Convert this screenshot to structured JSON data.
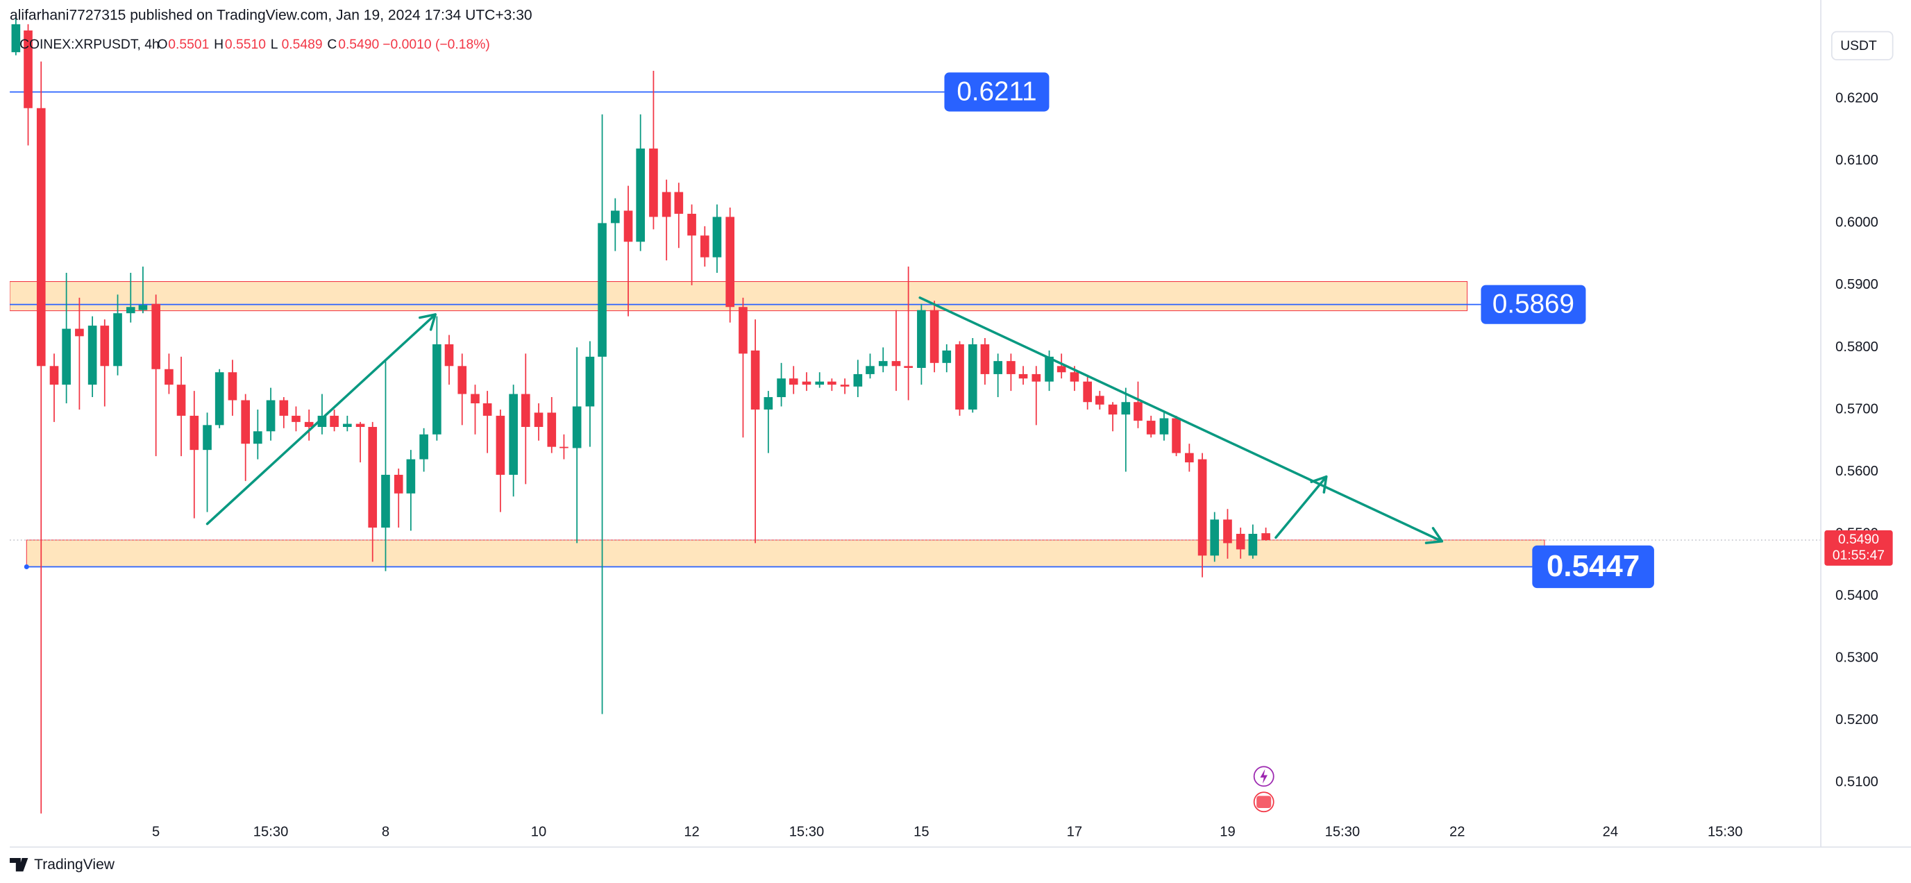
{
  "chart_data": {
    "type": "candlestick",
    "title": "alifarhani7727315 published on TradingView.com, Jan 19, 2024 17:34 UTC+3:30",
    "legend": {
      "symbol": "COINEX:XRPUSDT, 4h",
      "items": [
        {
          "label": "O",
          "value": "0.5501"
        },
        {
          "label": "H",
          "value": "0.5510"
        },
        {
          "label": "L",
          "value": "0.5489"
        },
        {
          "label": "C",
          "value": "0.5490"
        }
      ],
      "change": "−0.0010 (−0.18%)"
    },
    "currency": "USDT",
    "footer": "TradingView",
    "up_color": "#089981",
    "down_color": "#f23645",
    "x": [
      3.17,
      3.33,
      3.5,
      3.67,
      3.83,
      4,
      4.17,
      4.33,
      4.5,
      4.67,
      4.83,
      5,
      5.17,
      5.33,
      5.5,
      5.67,
      5.83,
      6,
      6.17,
      6.33,
      6.5,
      6.67,
      6.83,
      7,
      7.17,
      7.33,
      7.5,
      7.67,
      7.83,
      8,
      8.17,
      8.33,
      8.5,
      8.67,
      8.83,
      9,
      9.17,
      9.33,
      9.5,
      9.67,
      9.83,
      10,
      10.17,
      10.33,
      10.5,
      10.67,
      10.83,
      11,
      11.17,
      11.33,
      11.5,
      11.67,
      11.83,
      12,
      12.17,
      12.33,
      12.5,
      12.67,
      12.83,
      13,
      13.17,
      13.33,
      13.5,
      13.67,
      13.83,
      14,
      14.17,
      14.33,
      14.5,
      14.67,
      14.83,
      15,
      15.17,
      15.33,
      15.5,
      15.67,
      15.83,
      16,
      16.17,
      16.33,
      16.5,
      16.67,
      16.83,
      17,
      17.17,
      17.33,
      17.5,
      17.67,
      17.83,
      18,
      18.17,
      18.33,
      18.5,
      18.67,
      18.83,
      19,
      19.17,
      19.33,
      19.5
    ],
    "open": [
      0.6275,
      0.631,
      0.6185,
      0.577,
      0.574,
      0.583,
      0.574,
      0.5835,
      0.577,
      0.5855,
      0.586,
      0.587,
      0.5765,
      0.574,
      0.569,
      0.5635,
      0.5675,
      0.576,
      0.5715,
      0.5645,
      0.5665,
      0.5715,
      0.569,
      0.568,
      0.5672,
      0.569,
      0.5672,
      0.5677,
      0.5672,
      0.551,
      0.5595,
      0.5565,
      0.562,
      0.566,
      0.5805,
      0.577,
      0.5725,
      0.571,
      0.569,
      0.5595,
      0.5725,
      0.5695,
      0.5695,
      0.564,
      0.5638,
      0.5705,
      0.5785,
      0.6,
      0.602,
      0.597,
      0.612,
      0.605,
      0.605,
      0.6015,
      0.598,
      0.5945,
      0.601,
      0.5865,
      0.5795,
      0.57,
      0.572,
      0.575,
      0.5745,
      0.574,
      0.5745,
      0.574,
      0.5737,
      0.5757,
      0.577,
      0.5778,
      0.577,
      0.5767,
      0.586,
      0.5775,
      0.5805,
      0.57,
      0.5805,
      0.5757,
      0.5778,
      0.5757,
      0.5757,
      0.5745,
      0.577,
      0.576,
      0.5745,
      0.5722,
      0.5708,
      0.5692,
      0.5712,
      0.5682,
      0.566,
      0.5686,
      0.563,
      0.562,
      0.5465,
      0.5523,
      0.55,
      0.5465,
      0.5501
    ],
    "high": [
      0.633,
      0.632,
      0.626,
      0.579,
      0.592,
      0.588,
      0.585,
      0.5845,
      0.5885,
      0.592,
      0.593,
      0.5885,
      0.579,
      0.5785,
      0.573,
      0.5695,
      0.5765,
      0.578,
      0.5725,
      0.57,
      0.5735,
      0.572,
      0.5705,
      0.57,
      0.5725,
      0.57,
      0.569,
      0.568,
      0.568,
      0.578,
      0.5605,
      0.5635,
      0.567,
      0.585,
      0.582,
      0.579,
      0.574,
      0.573,
      0.57,
      0.574,
      0.579,
      0.571,
      0.572,
      0.566,
      0.58,
      0.581,
      0.6175,
      0.604,
      0.606,
      0.6175,
      0.6245,
      0.607,
      0.6065,
      0.603,
      0.5995,
      0.603,
      0.6025,
      0.588,
      0.5845,
      0.573,
      0.5775,
      0.577,
      0.576,
      0.576,
      0.575,
      0.575,
      0.578,
      0.579,
      0.58,
      0.586,
      0.593,
      0.587,
      0.5875,
      0.5805,
      0.581,
      0.5815,
      0.5815,
      0.579,
      0.579,
      0.577,
      0.577,
      0.5795,
      0.579,
      0.577,
      0.5755,
      0.573,
      0.5712,
      0.5735,
      0.5745,
      0.569,
      0.5695,
      0.569,
      0.5645,
      0.563,
      0.5535,
      0.554,
      0.551,
      0.5515,
      0.551
    ],
    "low": [
      0.627,
      0.6125,
      0.505,
      0.568,
      0.571,
      0.57,
      0.572,
      0.5705,
      0.5755,
      0.584,
      0.5855,
      0.5625,
      0.5725,
      0.5625,
      0.5525,
      0.5535,
      0.567,
      0.569,
      0.5585,
      0.562,
      0.565,
      0.567,
      0.5665,
      0.565,
      0.566,
      0.5665,
      0.5665,
      0.5615,
      0.5455,
      0.544,
      0.551,
      0.5505,
      0.56,
      0.565,
      0.574,
      0.5675,
      0.566,
      0.563,
      0.5535,
      0.556,
      0.558,
      0.565,
      0.563,
      0.562,
      0.5485,
      0.564,
      0.521,
      0.5955,
      0.585,
      0.5955,
      0.599,
      0.594,
      0.596,
      0.59,
      0.593,
      0.592,
      0.584,
      0.5655,
      0.5485,
      0.563,
      0.5705,
      0.5725,
      0.573,
      0.5735,
      0.573,
      0.5725,
      0.572,
      0.575,
      0.576,
      0.573,
      0.5715,
      0.574,
      0.576,
      0.576,
      0.569,
      0.5695,
      0.574,
      0.572,
      0.573,
      0.574,
      0.5675,
      0.573,
      0.575,
      0.573,
      0.57,
      0.57,
      0.5665,
      0.56,
      0.567,
      0.5655,
      0.565,
      0.5625,
      0.56,
      0.543,
      0.5455,
      0.546,
      0.546,
      0.546,
      0.5489
    ],
    "close": [
      0.632,
      0.6185,
      0.577,
      0.574,
      0.583,
      0.5818,
      0.5835,
      0.577,
      0.5855,
      0.5865,
      0.5868,
      0.5765,
      0.574,
      0.569,
      0.5635,
      0.5675,
      0.576,
      0.5715,
      0.5645,
      0.5665,
      0.5715,
      0.569,
      0.568,
      0.5672,
      0.569,
      0.5672,
      0.5677,
      0.5672,
      0.551,
      0.5595,
      0.5565,
      0.562,
      0.566,
      0.5805,
      0.577,
      0.5725,
      0.571,
      0.569,
      0.5595,
      0.5725,
      0.5672,
      0.5672,
      0.564,
      0.5638,
      0.5705,
      0.5785,
      0.6,
      0.602,
      0.597,
      0.612,
      0.601,
      0.601,
      0.6015,
      0.598,
      0.5945,
      0.601,
      0.5865,
      0.579,
      0.57,
      0.572,
      0.575,
      0.574,
      0.574,
      0.5745,
      0.574,
      0.5737,
      0.5757,
      0.577,
      0.5778,
      0.577,
      0.5767,
      0.586,
      0.5775,
      0.5795,
      0.57,
      0.5805,
      0.5757,
      0.5778,
      0.5757,
      0.575,
      0.5745,
      0.5785,
      0.576,
      0.5745,
      0.5712,
      0.5708,
      0.5692,
      0.5712,
      0.5682,
      0.566,
      0.5686,
      0.563,
      0.5615,
      0.5465,
      0.5523,
      0.5485,
      0.5475,
      0.55,
      0.549
    ],
    "xlim": [
      3.09,
      26.75
    ],
    "ylim": [
      0.4996,
      0.6359
    ],
    "xticks": [
      {
        "value": 5,
        "label": "5"
      },
      {
        "value": 6.5,
        "label": "15:30"
      },
      {
        "value": 8,
        "label": "8"
      },
      {
        "value": 10,
        "label": "10"
      },
      {
        "value": 12,
        "label": "12"
      },
      {
        "value": 13.5,
        "label": "15:30"
      },
      {
        "value": 15,
        "label": "15"
      },
      {
        "value": 17,
        "label": "17"
      },
      {
        "value": 19,
        "label": "19"
      },
      {
        "value": 20.5,
        "label": "15:30"
      },
      {
        "value": 22,
        "label": "22"
      },
      {
        "value": 24,
        "label": "24"
      },
      {
        "value": 25.5,
        "label": "15:30"
      }
    ],
    "yticks": [
      {
        "value": 0.51,
        "label": "0.5100"
      },
      {
        "value": 0.52,
        "label": "0.5200"
      },
      {
        "value": 0.53,
        "label": "0.5300"
      },
      {
        "value": 0.54,
        "label": "0.5400"
      },
      {
        "value": 0.55,
        "label": "0.5500"
      },
      {
        "value": 0.56,
        "label": "0.5600"
      },
      {
        "value": 0.57,
        "label": "0.5700"
      },
      {
        "value": 0.58,
        "label": "0.5800"
      },
      {
        "value": 0.59,
        "label": "0.5900"
      },
      {
        "value": 0.6,
        "label": "0.6000"
      },
      {
        "value": 0.61,
        "label": "0.6100"
      },
      {
        "value": 0.62,
        "label": "0.6200"
      }
    ],
    "last_price": {
      "value": 0.549,
      "label": "0.5490",
      "countdown": "01:55:47"
    },
    "level_color": "#2962ff",
    "levels": [
      {
        "value": 0.6211,
        "label": "0.6211",
        "x": [
          3.09,
          15.3
        ]
      },
      {
        "value": 0.5869,
        "label": "0.5869",
        "x": [
          3.09,
          22.31
        ]
      },
      {
        "value": 0.5447,
        "label": "0.5447",
        "x": [
          3.31,
          22.98
        ]
      }
    ],
    "zone_color": "#ffe0b2",
    "zones": [
      {
        "ylim": [
          0.5859,
          0.5906
        ],
        "xlim": [
          3.09,
          22.13
        ]
      },
      {
        "ylim": [
          0.5447,
          0.549
        ],
        "xlim": [
          3.31,
          23.14
        ]
      }
    ],
    "arrow_color": "#089981",
    "arrows": [
      {
        "x": [
          5.67,
          8.65
        ],
        "y": [
          0.5516,
          0.5853
        ]
      },
      {
        "x": [
          14.98,
          21.8
        ],
        "y": [
          0.588,
          0.5488
        ]
      },
      {
        "x": [
          19.63,
          20.29
        ],
        "y": [
          0.5494,
          0.5592
        ]
      }
    ]
  }
}
